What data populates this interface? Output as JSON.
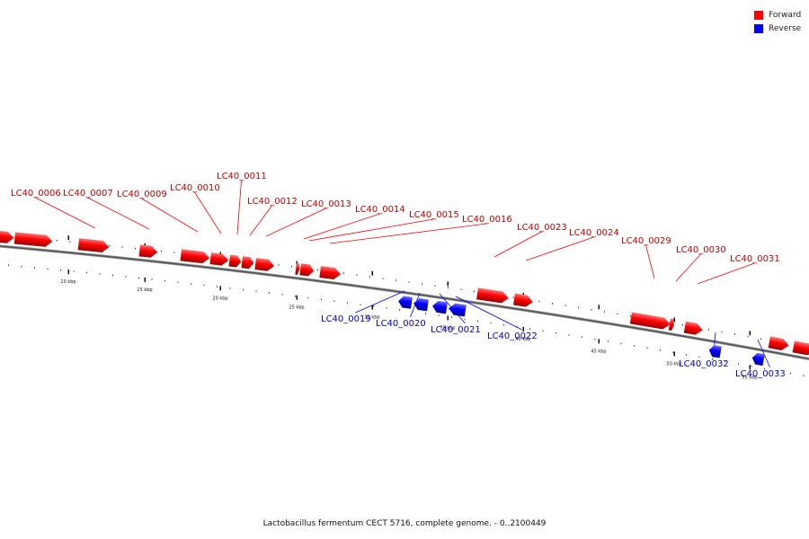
{
  "caption": "Lactobacillus fermentum CECT 5716, complete genome. - 0..2100449",
  "legend": {
    "forward": {
      "label": "Forward",
      "color": "#ff0000"
    },
    "reverse": {
      "label": "Reverse",
      "color": "#0000ff"
    }
  },
  "scale_labels": [
    "10 kbp",
    "15 kbp",
    "20 kbp",
    "25 kbp",
    "30 kbp",
    "35 kbp",
    "40 kbp",
    "45 kbp",
    "50 kbp",
    "55 kbp"
  ],
  "genes": [
    {
      "id": "LC40_0006",
      "strand": "forward"
    },
    {
      "id": "LC40_0007",
      "strand": "forward"
    },
    {
      "id": "LC40_0009",
      "strand": "forward"
    },
    {
      "id": "LC40_0010",
      "strand": "forward"
    },
    {
      "id": "LC40_0011",
      "strand": "forward"
    },
    {
      "id": "LC40_0012",
      "strand": "forward"
    },
    {
      "id": "LC40_0013",
      "strand": "forward"
    },
    {
      "id": "LC40_0014",
      "strand": "forward"
    },
    {
      "id": "LC40_0015",
      "strand": "forward"
    },
    {
      "id": "LC40_0016",
      "strand": "forward"
    },
    {
      "id": "LC40_0023",
      "strand": "forward"
    },
    {
      "id": "LC40_0024",
      "strand": "forward"
    },
    {
      "id": "LC40_0029",
      "strand": "forward"
    },
    {
      "id": "LC40_0030",
      "strand": "forward"
    },
    {
      "id": "LC40_0031",
      "strand": "forward"
    },
    {
      "id": "LC40_0019",
      "strand": "reverse"
    },
    {
      "id": "LC40_0020",
      "strand": "reverse"
    },
    {
      "id": "LC40_0021",
      "strand": "reverse"
    },
    {
      "id": "LC40_0022",
      "strand": "reverse"
    },
    {
      "id": "LC40_0032",
      "strand": "reverse"
    },
    {
      "id": "LC40_0033",
      "strand": "reverse"
    }
  ]
}
